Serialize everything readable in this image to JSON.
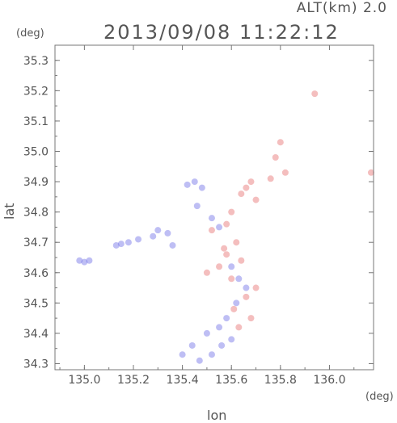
{
  "header": {
    "alt_label": "ALT(km)  2.0",
    "timestamp": "2013/09/08 11:22:12"
  },
  "chart_data": {
    "type": "scatter",
    "title": "2013/09/08 11:22:12",
    "xlabel": "lon",
    "ylabel": "lat",
    "x_unit": "(deg)",
    "y_unit": "(deg)",
    "xlim": [
      134.88,
      136.18
    ],
    "ylim": [
      34.28,
      35.35
    ],
    "x_ticks": [
      135.0,
      135.2,
      135.4,
      135.6,
      135.8,
      136.0
    ],
    "x_tick_labels": [
      "135.0",
      "135.2",
      "135.4",
      "135.6",
      "135.8",
      "136.0"
    ],
    "y_ticks": [
      34.3,
      34.4,
      34.5,
      34.6,
      34.7,
      34.8,
      34.9,
      35.0,
      35.1,
      35.2,
      35.3
    ],
    "y_tick_labels": [
      "34.3",
      "34.4",
      "34.5",
      "34.6",
      "34.7",
      "34.8",
      "34.9",
      "35.0",
      "35.1",
      "35.2",
      "35.3"
    ],
    "grid": false,
    "series": [
      {
        "color": "#6f6fe6",
        "points": [
          [
            134.98,
            34.64
          ],
          [
            135.0,
            34.635
          ],
          [
            135.02,
            34.64
          ],
          [
            135.13,
            34.69
          ],
          [
            135.15,
            34.695
          ],
          [
            135.18,
            34.7
          ],
          [
            135.22,
            34.71
          ],
          [
            135.28,
            34.72
          ],
          [
            135.34,
            34.73
          ],
          [
            135.42,
            34.89
          ],
          [
            135.45,
            34.9
          ],
          [
            135.48,
            34.88
          ],
          [
            135.46,
            34.82
          ],
          [
            135.52,
            34.78
          ],
          [
            135.55,
            34.75
          ],
          [
            135.6,
            34.62
          ],
          [
            135.63,
            34.58
          ],
          [
            135.66,
            34.55
          ],
          [
            135.62,
            34.5
          ],
          [
            135.58,
            34.45
          ],
          [
            135.55,
            34.42
          ],
          [
            135.5,
            34.4
          ],
          [
            135.44,
            34.36
          ],
          [
            135.4,
            34.33
          ],
          [
            135.47,
            34.31
          ],
          [
            135.52,
            34.33
          ],
          [
            135.56,
            34.36
          ],
          [
            135.6,
            34.38
          ],
          [
            135.36,
            34.69
          ],
          [
            135.3,
            34.74
          ]
        ]
      },
      {
        "color": "#e66f6f",
        "points": [
          [
            135.66,
            34.88
          ],
          [
            135.68,
            34.9
          ],
          [
            135.64,
            34.86
          ],
          [
            135.7,
            34.84
          ],
          [
            135.76,
            34.91
          ],
          [
            135.82,
            34.93
          ],
          [
            135.78,
            34.98
          ],
          [
            135.8,
            35.03
          ],
          [
            135.94,
            35.19
          ],
          [
            136.17,
            34.93
          ],
          [
            135.6,
            34.8
          ],
          [
            135.58,
            34.76
          ],
          [
            135.62,
            34.7
          ],
          [
            135.58,
            34.66
          ],
          [
            135.55,
            34.62
          ],
          [
            135.6,
            34.58
          ],
          [
            135.66,
            34.52
          ],
          [
            135.68,
            34.45
          ],
          [
            135.63,
            34.42
          ],
          [
            135.52,
            34.74
          ],
          [
            135.57,
            34.68
          ],
          [
            135.64,
            34.64
          ],
          [
            135.5,
            34.6
          ],
          [
            135.7,
            34.55
          ],
          [
            135.61,
            34.48
          ]
        ]
      }
    ]
  }
}
